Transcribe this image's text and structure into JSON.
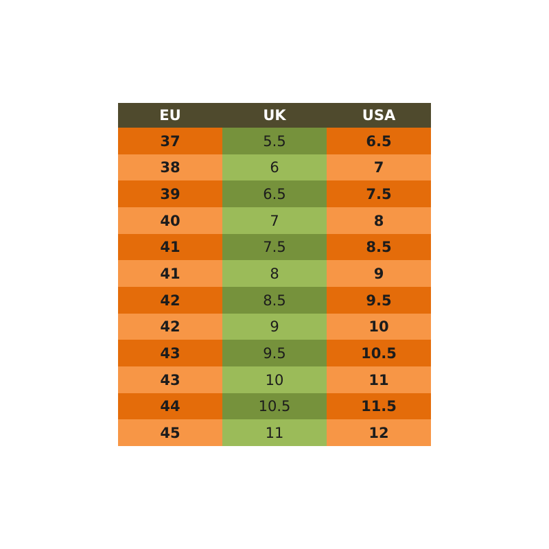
{
  "table": {
    "header": [
      "EU",
      "UK",
      "USA"
    ],
    "rows": [
      [
        "37",
        "5.5",
        "6.5"
      ],
      [
        "38",
        "6",
        "7"
      ],
      [
        "39",
        "6.5",
        "7.5"
      ],
      [
        "40",
        "7",
        "8"
      ],
      [
        "41",
        "7.5",
        "8.5"
      ],
      [
        "41",
        "8",
        "9"
      ],
      [
        "42",
        "8.5",
        "9.5"
      ],
      [
        "42",
        "9",
        "10"
      ],
      [
        "43",
        "9.5",
        "10.5"
      ],
      [
        "43",
        "10",
        "11"
      ],
      [
        "44",
        "10.5",
        "11.5"
      ],
      [
        "45",
        "11",
        "12"
      ]
    ]
  }
}
